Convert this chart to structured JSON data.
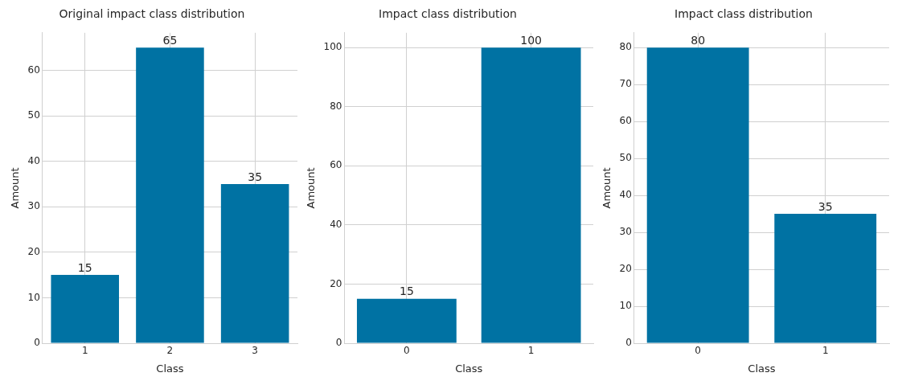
{
  "chart_data": [
    {
      "type": "bar",
      "title": "Original impact class distribution",
      "xlabel": "Class",
      "ylabel": "Amount",
      "categories": [
        "1",
        "2",
        "3"
      ],
      "values": [
        15,
        65,
        35
      ],
      "color": "#0072a3",
      "ylim": [
        0,
        68.25
      ],
      "yticks": [
        0,
        10,
        20,
        30,
        40,
        50,
        60
      ],
      "grid": true,
      "data_labels": true
    },
    {
      "type": "bar",
      "title": "Impact class distribution",
      "xlabel": "Class",
      "ylabel": "Amount",
      "categories": [
        "0",
        "1"
      ],
      "values": [
        15,
        100
      ],
      "color": "#0072a3",
      "ylim": [
        0,
        105
      ],
      "yticks": [
        0,
        20,
        40,
        60,
        80,
        100
      ],
      "grid": true,
      "data_labels": true
    },
    {
      "type": "bar",
      "title": "Impact class distribution",
      "xlabel": "Class",
      "ylabel": "Amount",
      "categories": [
        "0",
        "1"
      ],
      "values": [
        80,
        35
      ],
      "color": "#0072a3",
      "ylim": [
        0,
        84
      ],
      "yticks": [
        0,
        10,
        20,
        30,
        40,
        50,
        60,
        70,
        80
      ],
      "grid": true,
      "data_labels": true
    }
  ]
}
